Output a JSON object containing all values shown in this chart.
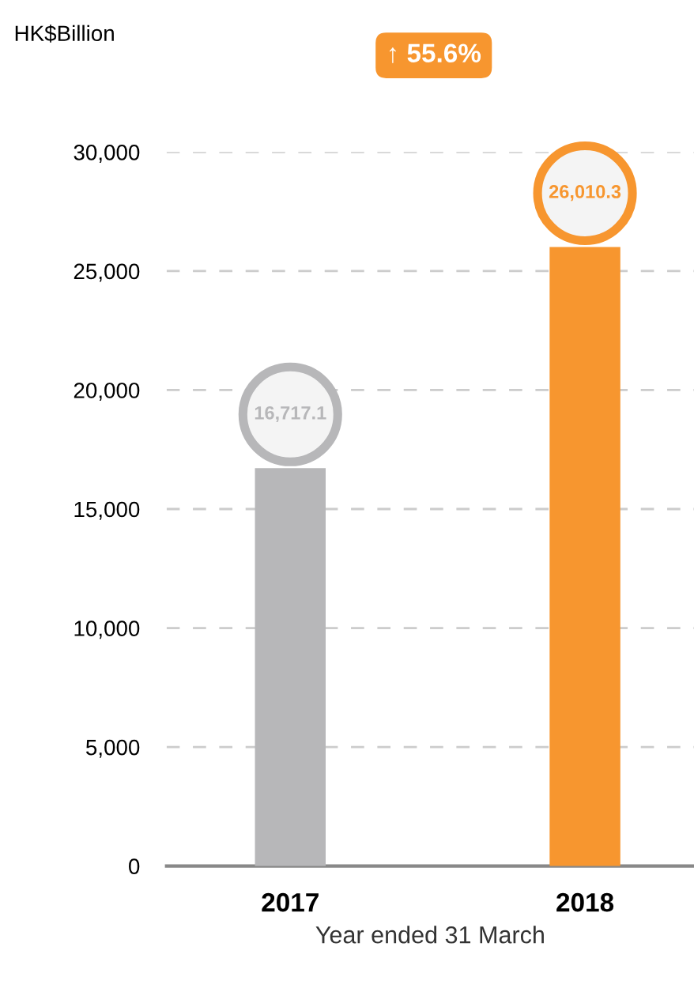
{
  "chart_data": {
    "type": "bar",
    "ylabel": "HK$Billion",
    "xlabel": "Year ended 31 March",
    "categories": [
      "2017",
      "2018"
    ],
    "values": [
      16717.1,
      26010.3
    ],
    "colors": [
      "#b7b7b9",
      "#f7962f"
    ],
    "value_labels": [
      "16,717.1",
      "26,010.3"
    ],
    "annotations": [
      "↑ 55.6%"
    ],
    "ylim": [
      0,
      30000
    ],
    "yticks": [
      {
        "value": 0,
        "label": "0"
      },
      {
        "value": 5000,
        "label": "5,000"
      },
      {
        "value": 10000,
        "label": "10,000"
      },
      {
        "value": 15000,
        "label": "15,000"
      },
      {
        "value": 20000,
        "label": "20,000"
      },
      {
        "value": 25000,
        "label": "25,000"
      },
      {
        "value": 30000,
        "label": "30,000"
      }
    ],
    "grid": "y"
  }
}
